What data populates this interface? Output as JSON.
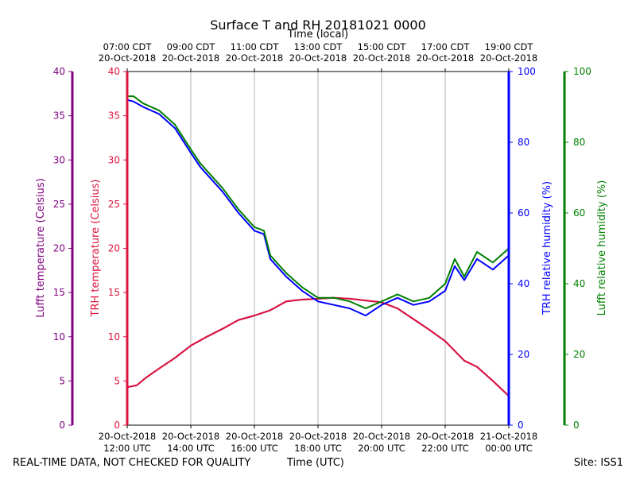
{
  "chart_data": {
    "type": "line",
    "title": "Surface T and RH 20181021 0000",
    "top_axis_label": "Time (local)",
    "top_ticks": [
      [
        "07:00 CDT",
        "20-Oct-2018"
      ],
      [
        "09:00 CDT",
        "20-Oct-2018"
      ],
      [
        "11:00 CDT",
        "20-Oct-2018"
      ],
      [
        "13:00 CDT",
        "20-Oct-2018"
      ],
      [
        "15:00 CDT",
        "20-Oct-2018"
      ],
      [
        "17:00 CDT",
        "20-Oct-2018"
      ],
      [
        "19:00 CDT",
        "20-Oct-2018"
      ]
    ],
    "bottom_ticks": [
      [
        "20-Oct-2018",
        "12:00 UTC"
      ],
      [
        "20-Oct-2018",
        "14:00 UTC"
      ],
      [
        "20-Oct-2018",
        "16:00 UTC"
      ],
      [
        "20-Oct-2018",
        "18:00 UTC"
      ],
      [
        "20-Oct-2018",
        "20:00 UTC"
      ],
      [
        "20-Oct-2018",
        "22:00 UTC"
      ],
      [
        "21-Oct-2018",
        "00:00 UTC"
      ]
    ],
    "xlabel": "Time (UTC)",
    "x_unit": "hours after 20-Oct-2018 12:00 UTC",
    "xlim": [
      0,
      12
    ],
    "grid_x": [
      2,
      4,
      6,
      8,
      10
    ],
    "temp_axes": [
      {
        "label": "Lufft temperature (Celsius)",
        "color": "#800080",
        "ticks": [
          "0",
          "5",
          "10",
          "15",
          "20",
          "25",
          "30",
          "35",
          "40"
        ]
      },
      {
        "label": "TRH temperature (Celsius)",
        "color": "#dc143c",
        "ticks": [
          "0",
          "5",
          "10",
          "15",
          "20",
          "25",
          "30",
          "35",
          "40"
        ]
      }
    ],
    "rh_axes": [
      {
        "label": "TRH relative humidity (%)",
        "color": "#0000ff",
        "ticks": [
          "0",
          "20",
          "40",
          "60",
          "80",
          "100"
        ]
      },
      {
        "label": "Lufft relative humidity (%)",
        "color": "#008000",
        "ticks": [
          "0",
          "20",
          "40",
          "60",
          "80",
          "100"
        ]
      }
    ],
    "temp_ylim": [
      0,
      40
    ],
    "rh_ylim": [
      0,
      100
    ],
    "series": [
      {
        "name": "Lufft temperature",
        "color": "#800080",
        "axis": "temp",
        "x": [
          0,
          0.3,
          0.6,
          1,
          1.5,
          2,
          2.5,
          3,
          3.5,
          4,
          4.5,
          5,
          5.5,
          6,
          6.5,
          7,
          7.5,
          8,
          8.5,
          9,
          9.5,
          10,
          10.3,
          10.6,
          11,
          11.5,
          12
        ],
        "y": [
          4.3,
          4.5,
          5.4,
          6.4,
          7.6,
          9.0,
          10.0,
          10.9,
          11.9,
          12.4,
          13.0,
          14.0,
          14.2,
          14.3,
          14.4,
          14.3,
          14.1,
          13.9,
          13.2,
          12.0,
          10.8,
          9.5,
          8.4,
          7.3,
          6.6,
          5.0,
          3.3
        ]
      },
      {
        "name": "TRH temperature",
        "color": "#dc143c",
        "axis": "temp",
        "x": [
          0,
          0.3,
          0.6,
          1,
          1.5,
          2,
          2.5,
          3,
          3.5,
          4,
          4.5,
          5,
          5.5,
          6,
          6.5,
          7,
          7.5,
          8,
          8.5,
          9,
          9.5,
          10,
          10.3,
          10.6,
          11,
          11.5,
          12
        ],
        "y": [
          4.3,
          4.5,
          5.4,
          6.4,
          7.6,
          9.0,
          10.0,
          10.9,
          11.9,
          12.4,
          13.0,
          14.0,
          14.2,
          14.3,
          14.4,
          14.3,
          14.1,
          13.9,
          13.2,
          12.0,
          10.8,
          9.5,
          8.4,
          7.3,
          6.6,
          5.0,
          3.3
        ]
      },
      {
        "name": "TRH relative humidity",
        "color": "#0000ff",
        "axis": "rh",
        "x": [
          0,
          0.2,
          0.5,
          1,
          1.5,
          2,
          2.3,
          2.5,
          3,
          3.5,
          4,
          4.3,
          4.5,
          5,
          5.5,
          6,
          6.5,
          7,
          7.5,
          8,
          8.5,
          9,
          9.5,
          10,
          10.3,
          10.6,
          11,
          11.5,
          12
        ],
        "y": [
          92,
          91.5,
          90,
          88,
          84,
          77,
          73,
          71,
          66,
          60,
          55,
          54,
          47,
          42,
          38,
          35,
          34,
          33,
          31,
          34,
          36,
          34,
          35,
          38,
          45,
          41,
          47,
          44,
          48
        ]
      },
      {
        "name": "Lufft relative humidity",
        "color": "#008000",
        "axis": "rh",
        "x": [
          0,
          0.2,
          0.5,
          1,
          1.5,
          2,
          2.3,
          2.5,
          3,
          3.5,
          4,
          4.3,
          4.5,
          5,
          5.5,
          6,
          6.5,
          7,
          7.5,
          8,
          8.5,
          9,
          9.5,
          10,
          10.3,
          10.6,
          11,
          11.5,
          12
        ],
        "y": [
          93,
          93,
          91,
          89,
          85,
          78,
          74,
          72,
          67,
          61,
          56,
          55,
          48,
          43,
          39,
          36,
          36,
          35,
          33,
          35,
          37,
          35,
          36,
          40,
          47,
          42,
          49,
          46,
          50
        ]
      }
    ]
  },
  "footer": {
    "left": "REAL-TIME DATA, NOT CHECKED FOR QUALITY",
    "center": "Time (UTC)",
    "right": "Site: ISS1"
  }
}
